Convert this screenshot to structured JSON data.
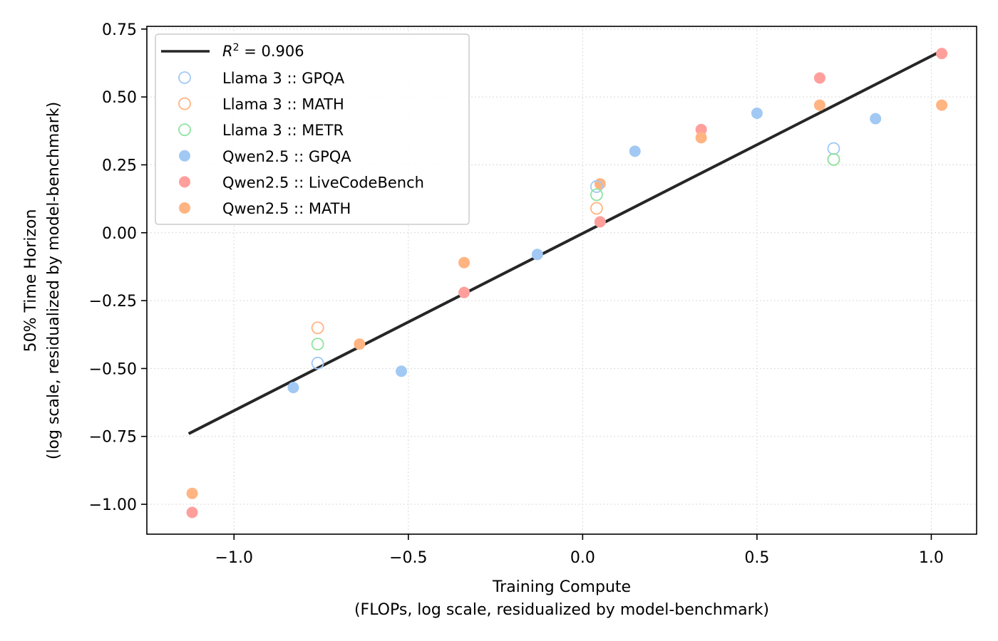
{
  "chart_data": {
    "type": "scatter",
    "xlabel": "Training Compute",
    "xlabel_sub": "(FLOPs, log scale, residualized by model-benchmark)",
    "ylabel": "50% Time Horizon",
    "ylabel_sub": "(log scale, residualized by model-benchmark)",
    "xlim": [
      -1.25,
      1.13
    ],
    "ylim": [
      -1.11,
      0.76
    ],
    "xticks": [
      -1.0,
      -0.5,
      0.0,
      0.5,
      1.0
    ],
    "xtick_labels": [
      "−1.0",
      "−0.5",
      "0.0",
      "0.5",
      "1.0"
    ],
    "yticks": [
      -1.0,
      -0.75,
      -0.5,
      -0.25,
      0.0,
      0.25,
      0.5,
      0.75
    ],
    "ytick_labels": [
      "−1.00",
      "−0.75",
      "−0.50",
      "−0.25",
      "0.00",
      "0.25",
      "0.50",
      "0.75"
    ],
    "grid": true,
    "legend_position": "top-left",
    "fit_line": {
      "label_prefix": "R",
      "label_sup": "2",
      "label_suffix": " = 0.906",
      "color": "#262626",
      "x": [
        -1.13,
        1.03
      ],
      "y": [
        -0.74,
        0.67
      ]
    },
    "series": [
      {
        "name": "Llama 3 :: GPQA",
        "color": "#a1c9f4",
        "filled": false,
        "points": [
          [
            -0.76,
            -0.48
          ],
          [
            0.04,
            0.17
          ],
          [
            0.72,
            0.31
          ]
        ]
      },
      {
        "name": "Llama 3 :: MATH",
        "color": "#ffb482",
        "filled": false,
        "points": [
          [
            -0.76,
            -0.35
          ],
          [
            0.04,
            0.09
          ],
          [
            0.72,
            0.27
          ]
        ]
      },
      {
        "name": "Llama 3 :: METR",
        "color": "#8de5a1",
        "filled": false,
        "points": [
          [
            -0.76,
            -0.41
          ],
          [
            0.04,
            0.14
          ],
          [
            0.72,
            0.27
          ]
        ]
      },
      {
        "name": "Qwen2.5 :: GPQA",
        "color": "#a1c9f4",
        "filled": true,
        "points": [
          [
            -0.83,
            -0.57
          ],
          [
            -0.52,
            -0.51
          ],
          [
            -0.13,
            -0.08
          ],
          [
            0.15,
            0.3
          ],
          [
            0.5,
            0.44
          ],
          [
            0.84,
            0.42
          ]
        ]
      },
      {
        "name": "Qwen2.5 :: LiveCodeBench",
        "color": "#ff9f9b",
        "filled": true,
        "points": [
          [
            -1.12,
            -1.03
          ],
          [
            -0.34,
            -0.22
          ],
          [
            0.05,
            0.04
          ],
          [
            0.34,
            0.38
          ],
          [
            0.68,
            0.57
          ],
          [
            1.03,
            0.66
          ]
        ]
      },
      {
        "name": "Qwen2.5 :: MATH",
        "color": "#ffb482",
        "filled": true,
        "points": [
          [
            -1.12,
            -0.96
          ],
          [
            -0.64,
            -0.41
          ],
          [
            -0.34,
            -0.11
          ],
          [
            0.05,
            0.18
          ],
          [
            0.34,
            0.35
          ],
          [
            0.68,
            0.47
          ],
          [
            1.03,
            0.47
          ]
        ]
      }
    ]
  }
}
